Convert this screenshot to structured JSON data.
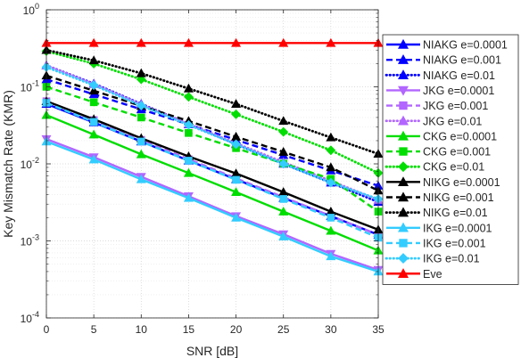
{
  "chart_data": {
    "type": "line",
    "xlabel": "SNR [dB]",
    "ylabel": "Key Mismatch Rate (KMR)",
    "yscale": "log",
    "xlim": [
      0,
      35
    ],
    "ylim": [
      0.0001,
      1
    ],
    "grid": true,
    "legend_position": "right",
    "x": [
      0,
      5,
      10,
      15,
      20,
      25,
      30,
      35
    ],
    "x_tick_labels": [
      "0",
      "5",
      "10",
      "15",
      "20",
      "25",
      "30",
      "35"
    ],
    "y_tick_labels": [
      {
        "base": "10",
        "exp": "-4"
      },
      {
        "base": "10",
        "exp": "-3"
      },
      {
        "base": "10",
        "exp": "-2"
      },
      {
        "base": "10",
        "exp": "-1"
      },
      {
        "base": "10",
        "exp": "0"
      }
    ],
    "series": [
      {
        "name": "NIAKG e=0.0001",
        "color": "#0000ff",
        "dash": "solid",
        "marker": "triangle-up",
        "values": [
          0.06,
          0.0345,
          0.0195,
          0.011,
          0.0063,
          0.0036,
          0.0021,
          0.0012
        ]
      },
      {
        "name": "NIAKG e=0.001",
        "color": "#0000ff",
        "dash": "dashed",
        "marker": "triangle-up",
        "values": [
          0.125,
          0.08,
          0.051,
          0.0325,
          0.0205,
          0.013,
          0.0082,
          0.0052
        ]
      },
      {
        "name": "NIAKG e=0.01",
        "color": "#0000ff",
        "dash": "dotted",
        "marker": "triangle-up",
        "values": [
          0.19,
          0.11,
          0.06,
          0.033,
          0.018,
          0.01,
          0.0057,
          0.0032
        ]
      },
      {
        "name": "JKG e=0.0001",
        "color": "#b266ff",
        "dash": "solid",
        "marker": "triangle-down",
        "values": [
          0.021,
          0.0122,
          0.0068,
          0.0038,
          0.0021,
          0.00122,
          0.00068,
          0.00042
        ]
      },
      {
        "name": "JKG e=0.001",
        "color": "#b266ff",
        "dash": "dashed",
        "marker": "square",
        "values": [
          0.065,
          0.037,
          0.0205,
          0.0115,
          0.0065,
          0.0037,
          0.0021,
          0.0012
        ]
      },
      {
        "name": "JKG e=0.01",
        "color": "#b266ff",
        "dash": "dotted",
        "marker": "triangle-up",
        "values": [
          0.19,
          0.108,
          0.059,
          0.033,
          0.0185,
          0.0105,
          0.006,
          0.0034
        ]
      },
      {
        "name": "CKG e=0.0001",
        "color": "#00dd00",
        "dash": "solid",
        "marker": "triangle-up",
        "values": [
          0.043,
          0.024,
          0.0133,
          0.0076,
          0.0043,
          0.0024,
          0.00135,
          0.00075
        ]
      },
      {
        "name": "CKG e=0.001",
        "color": "#00dd00",
        "dash": "dashed",
        "marker": "square",
        "values": [
          0.1,
          0.063,
          0.04,
          0.0252,
          0.016,
          0.0101,
          0.0064,
          0.0024
        ]
      },
      {
        "name": "CKG e=0.01",
        "color": "#00dd00",
        "dash": "dotted",
        "marker": "diamond",
        "values": [
          0.29,
          0.2,
          0.125,
          0.074,
          0.044,
          0.026,
          0.015,
          0.0076
        ]
      },
      {
        "name": "NIKG e=0.0001",
        "color": "#000000",
        "dash": "solid",
        "marker": "triangle-up",
        "values": [
          0.065,
          0.038,
          0.0215,
          0.0125,
          0.0075,
          0.0043,
          0.0024,
          0.0014
        ]
      },
      {
        "name": "NIKG e=0.001",
        "color": "#000000",
        "dash": "dashed",
        "marker": "triangle-up",
        "values": [
          0.14,
          0.089,
          0.0565,
          0.036,
          0.0225,
          0.0143,
          0.009,
          0.0045
        ]
      },
      {
        "name": "NIKG e=0.01",
        "color": "#000000",
        "dash": "dotted",
        "marker": "triangle-up",
        "values": [
          0.3,
          0.22,
          0.15,
          0.095,
          0.06,
          0.036,
          0.022,
          0.0135
        ]
      },
      {
        "name": "IKG e=0.0001",
        "color": "#33ccff",
        "dash": "solid",
        "marker": "triangle-up",
        "values": [
          0.0195,
          0.0114,
          0.0063,
          0.0036,
          0.002,
          0.00114,
          0.00063,
          0.0004
        ]
      },
      {
        "name": "IKG e=0.001",
        "color": "#33ccff",
        "dash": "dashed",
        "marker": "square",
        "values": [
          0.062,
          0.035,
          0.0195,
          0.011,
          0.0062,
          0.0035,
          0.002,
          0.0011
        ]
      },
      {
        "name": "IKG e=0.01",
        "color": "#33ccff",
        "dash": "dotted",
        "marker": "diamond",
        "values": [
          0.18,
          0.105,
          0.057,
          0.032,
          0.018,
          0.01,
          0.0057,
          0.0035
        ]
      },
      {
        "name": "Eve",
        "color": "#ff0000",
        "dash": "solid",
        "marker": "triangle-up",
        "values": [
          0.37,
          0.37,
          0.37,
          0.37,
          0.37,
          0.37,
          0.37,
          0.37
        ]
      }
    ]
  }
}
